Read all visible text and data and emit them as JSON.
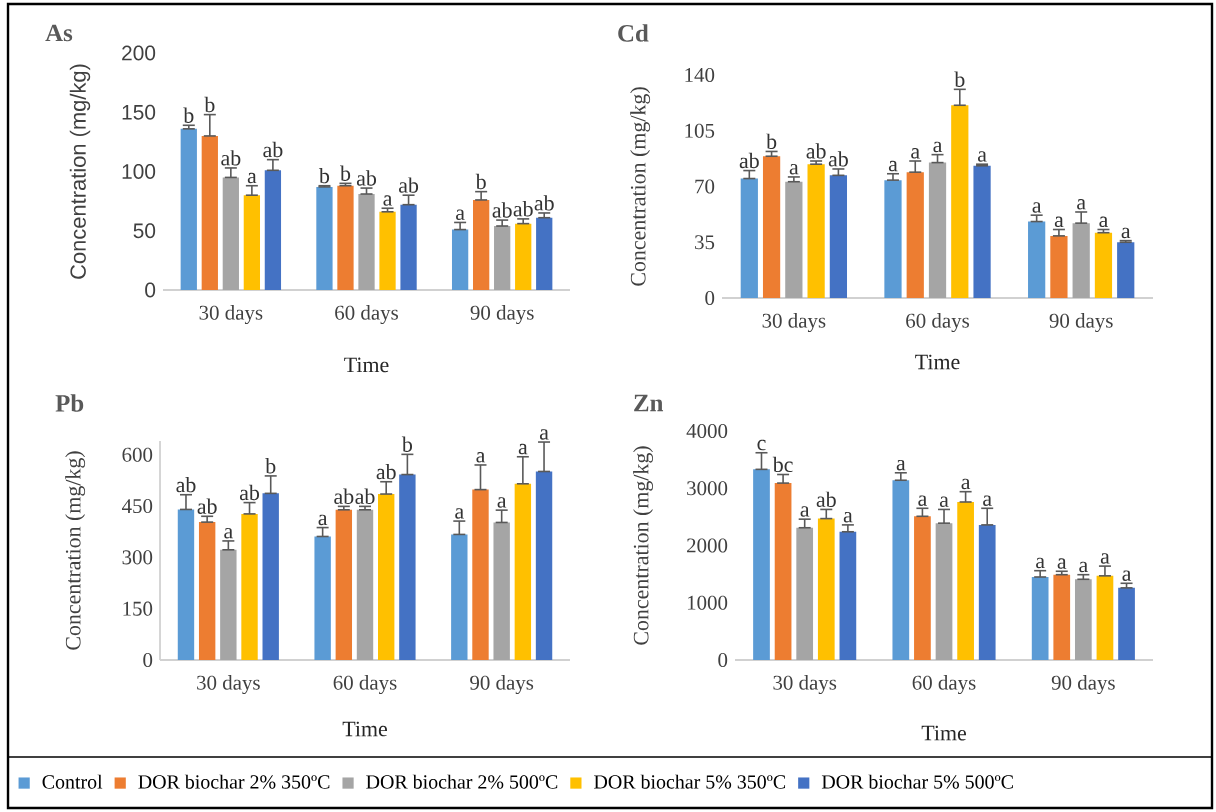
{
  "chart_data": [
    {
      "type": "bar",
      "title": "As",
      "xlabel": "Time",
      "ylabel": "Concentration (mg/kg)",
      "categories": [
        "30 days",
        "60 days",
        "90 days"
      ],
      "ylim": [
        0,
        200
      ],
      "yticks": [
        0,
        50,
        100,
        150,
        200
      ],
      "legend": false,
      "series": [
        {
          "color": "#5b9bd5",
          "values": [
            136,
            87,
            51
          ],
          "errors": [
            [
              136,
              139
            ],
            [
              87,
              88
            ],
            [
              51,
              57
            ]
          ]
        },
        {
          "color": "#ed7d31",
          "values": [
            130,
            88,
            76
          ],
          "errors": [
            [
              130,
              148
            ],
            [
              88,
              90
            ],
            [
              76,
              83
            ]
          ]
        },
        {
          "color": "#a5a5a5",
          "values": [
            95,
            81,
            54
          ],
          "errors": [
            [
              95,
              103
            ],
            [
              81,
              86
            ],
            [
              54,
              59
            ]
          ]
        },
        {
          "color": "#ffc000",
          "values": [
            80,
            66,
            56
          ],
          "errors": [
            [
              80,
              88
            ],
            [
              66,
              69
            ],
            [
              56,
              60
            ]
          ]
        },
        {
          "color": "#4472c4",
          "values": [
            101,
            72,
            61
          ],
          "errors": [
            [
              101,
              110
            ],
            [
              72,
              80
            ],
            [
              61,
              65
            ]
          ]
        }
      ],
      "annotations": [
        "b",
        "b",
        "ab",
        "a",
        "ab",
        "b",
        "b",
        "ab",
        "a",
        "ab",
        "a",
        "b",
        "ab",
        "ab",
        "ab"
      ]
    },
    {
      "type": "bar",
      "title": "Cd",
      "xlabel": "Time",
      "ylabel": "Concentration (mg/kg)",
      "categories": [
        "30 days",
        "60 days",
        "90 days"
      ],
      "ylim": [
        0,
        140
      ],
      "yticks": [
        0,
        35,
        70,
        105,
        140
      ],
      "legend": false,
      "series": [
        {
          "color": "#5b9bd5",
          "values": [
            75,
            74,
            48
          ],
          "errors": [
            [
              75,
              80
            ],
            [
              74,
              78
            ],
            [
              48,
              52
            ]
          ]
        },
        {
          "color": "#ed7d31",
          "values": [
            89,
            79,
            39
          ],
          "errors": [
            [
              89,
              92
            ],
            [
              79,
              86
            ],
            [
              39,
              43
            ]
          ]
        },
        {
          "color": "#a5a5a5",
          "values": [
            73,
            85,
            47
          ],
          "errors": [
            [
              73,
              76
            ],
            [
              85,
              90
            ],
            [
              47,
              54
            ]
          ]
        },
        {
          "color": "#ffc000",
          "values": [
            84,
            121,
            41
          ],
          "errors": [
            [
              84,
              86
            ],
            [
              121,
              131
            ],
            [
              41,
              43
            ]
          ]
        },
        {
          "color": "#4472c4",
          "values": [
            77,
            83,
            35
          ],
          "errors": [
            [
              77,
              81
            ],
            [
              83,
              84
            ],
            [
              35,
              36
            ]
          ]
        }
      ],
      "annotations": [
        "ab",
        "b",
        "a",
        "ab",
        "ab",
        "a",
        "a",
        "a",
        "b",
        "a",
        "a",
        "a",
        "a",
        "a",
        "a"
      ]
    },
    {
      "type": "bar",
      "title": "Pb",
      "xlabel": "Time",
      "ylabel": "Concentration (mg/kg)",
      "categories": [
        "30 days",
        "60 days",
        "90 days"
      ],
      "ylim": [
        0,
        640
      ],
      "yticks": [
        0,
        150,
        300,
        450,
        600
      ],
      "legend": "bottom",
      "series": [
        {
          "name": "Control",
          "color": "#5b9bd5",
          "values": [
            440,
            361,
            367
          ],
          "errors": [
            [
              440,
              483
            ],
            [
              361,
              387
            ],
            [
              367,
              406
            ]
          ]
        },
        {
          "name": "DOR biochar 2% 350ºC",
          "color": "#ed7d31",
          "values": [
            403,
            439,
            498
          ],
          "errors": [
            [
              403,
              420
            ],
            [
              439,
              449
            ],
            [
              498,
              570
            ]
          ]
        },
        {
          "name": "DOR biochar 2% 500ºC",
          "color": "#a5a5a5",
          "values": [
            322,
            439,
            402
          ],
          "errors": [
            [
              322,
              348
            ],
            [
              439,
              449
            ],
            [
              402,
              438
            ]
          ]
        },
        {
          "name": "DOR biochar 5% 350ºC",
          "color": "#ffc000",
          "values": [
            427,
            485,
            515
          ],
          "errors": [
            [
              427,
              460
            ],
            [
              485,
              521
            ],
            [
              515,
              594
            ]
          ]
        },
        {
          "name": "DOR biochar 5% 500ºC",
          "color": "#4472c4",
          "values": [
            487,
            542,
            551
          ],
          "errors": [
            [
              487,
              538
            ],
            [
              542,
              601
            ],
            [
              551,
              637
            ]
          ]
        }
      ],
      "annotations": [
        "ab",
        "ab",
        "a",
        "ab",
        "b",
        "a",
        "ab",
        "ab",
        "ab",
        "b",
        "a",
        "a",
        "a",
        "a",
        "a"
      ]
    },
    {
      "type": "bar",
      "title": "Zn",
      "xlabel": "Time",
      "ylabel": "Concentration (mg/kg)",
      "categories": [
        "30 days",
        "60 days",
        "90 days"
      ],
      "ylim": [
        0,
        4000
      ],
      "yticks": [
        0,
        1000,
        2000,
        3000,
        4000
      ],
      "legend": false,
      "series": [
        {
          "color": "#5b9bd5",
          "values": [
            3330,
            3140,
            1450
          ],
          "errors": [
            [
              3330,
              3620
            ],
            [
              3140,
              3270
            ],
            [
              1450,
              1560
            ]
          ]
        },
        {
          "color": "#ed7d31",
          "values": [
            3090,
            2510,
            1490
          ],
          "errors": [
            [
              3090,
              3240
            ],
            [
              2510,
              2650
            ],
            [
              1490,
              1550
            ]
          ]
        },
        {
          "color": "#a5a5a5",
          "values": [
            2310,
            2390,
            1410
          ],
          "errors": [
            [
              2310,
              2460
            ],
            [
              2390,
              2630
            ],
            [
              1410,
              1490
            ]
          ]
        },
        {
          "color": "#ffc000",
          "values": [
            2470,
            2760,
            1470
          ],
          "errors": [
            [
              2470,
              2630
            ],
            [
              2760,
              2940
            ],
            [
              1470,
              1640
            ]
          ]
        },
        {
          "color": "#4472c4",
          "values": [
            2240,
            2360,
            1260
          ],
          "errors": [
            [
              2240,
              2360
            ],
            [
              2360,
              2650
            ],
            [
              1260,
              1340
            ]
          ]
        }
      ],
      "annotations": [
        "c",
        "bc",
        "a",
        "ab",
        "a",
        "a",
        "a",
        "a",
        "a",
        "a",
        "a",
        "a",
        "a",
        "a",
        "a"
      ]
    }
  ]
}
